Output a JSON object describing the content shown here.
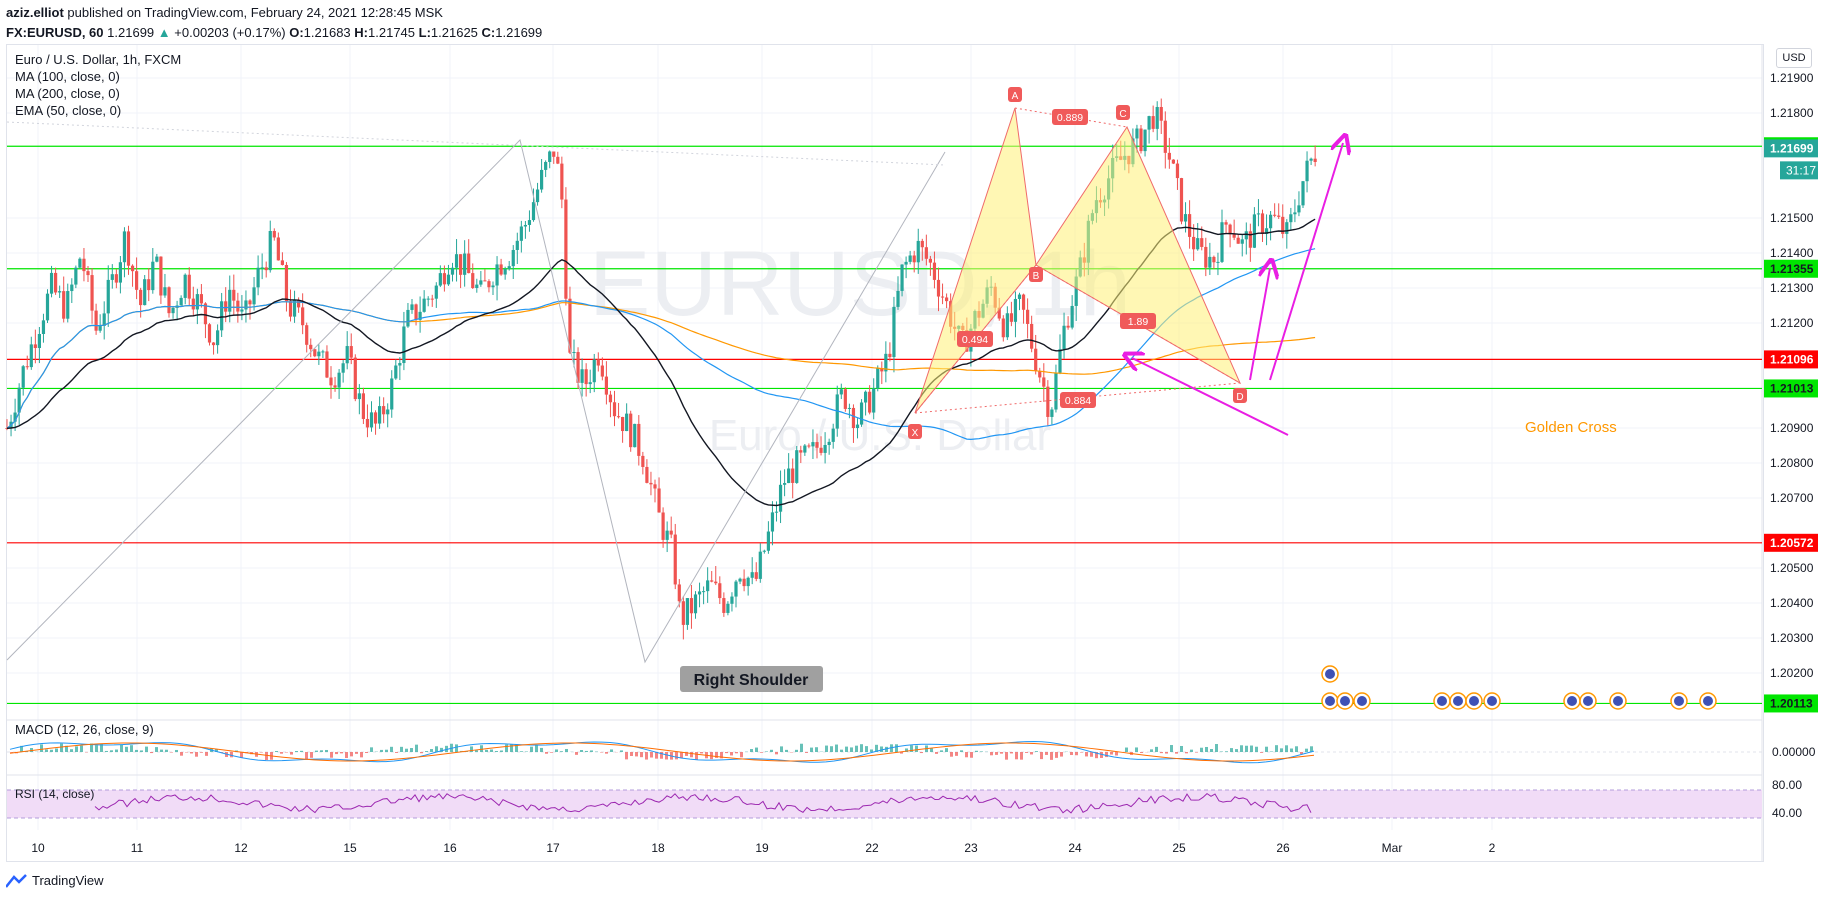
{
  "header": {
    "author": "aziz.elliot",
    "published": "published on TradingView.com, February 24, 2021 12:28:45 MSK",
    "symbol_line": "FX:EURUSD, 60",
    "last": "1.21699",
    "change": "+0.00203 (+0.17%)",
    "o_label": "O:",
    "o": "1.21683",
    "h_label": "H:",
    "h": "1.21745",
    "l_label": "L:",
    "l": "1.21625",
    "c_label": "C:",
    "c": "1.21699"
  },
  "legend": {
    "title": "Euro / U.S. Dollar, 1h, FXCM",
    "ma100": "MA (100, close, 0)",
    "ma200": "MA (200, close, 0)",
    "ema50": "EMA (50, close, 0)"
  },
  "watermark": {
    "symbol": "EURUSD, 1h",
    "name": "Euro / U.S. Dollar"
  },
  "currency_button": "USD",
  "countdown": "31:17",
  "annotations": {
    "right_shoulder": "Right Shoulder",
    "golden_cross": "Golden Cross",
    "pattern_points": [
      "X",
      "A",
      "B",
      "C",
      "D"
    ],
    "ratios": [
      "0.889",
      "0.494",
      "1.89",
      "0.884"
    ]
  },
  "macd_label": "MACD (12, 26, close, 9)",
  "rsi_label": "RSI (14, close)",
  "footer_brand": "TradingView",
  "colors": {
    "up": "#26a69a",
    "down": "#ef5350",
    "ema50": "#131722",
    "ma100": "#2196f3",
    "ma200": "#ff9800",
    "support_green": "#00e600",
    "resistance_red": "#ff0000",
    "harmonic_fill": "#fff176",
    "harmonic_edge": "#f06a6a",
    "arrow": "#e91ee3",
    "golden_text": "#ff9800",
    "rsi_band": "#f1dcf7",
    "rsi_line": "#9c27b0"
  },
  "chart_data": {
    "type": "candlestick",
    "title": "Euro / U.S. Dollar, 1h, FXCM",
    "x_ticks": [
      "10",
      "11",
      "12",
      "15",
      "16",
      "17",
      "18",
      "19",
      "22",
      "23",
      "24",
      "25",
      "26",
      "Mar",
      "2"
    ],
    "y_ticks": [
      1.219,
      1.218,
      1.215,
      1.214,
      1.213,
      1.212,
      1.209,
      1.208,
      1.207,
      1.205,
      1.204,
      1.203,
      1.202
    ],
    "y_tick_labels": [
      "1.21900",
      "1.21800",
      "1.21500",
      "1.21400",
      "1.21300",
      "1.21200",
      "1.20900",
      "1.20800",
      "1.20700",
      "1.20500",
      "1.20400",
      "1.20300",
      "1.20200"
    ],
    "ylim": [
      1.2012,
      1.2192
    ],
    "price_levels": [
      {
        "value": 1.21705,
        "label": "1.21705",
        "color": "#00e600"
      },
      {
        "value": 1.21699,
        "label": "1.21699",
        "color": "#26a69a"
      },
      {
        "value": 1.21355,
        "label": "1.21355",
        "color": "#00e600"
      },
      {
        "value": 1.21096,
        "label": "1.21096",
        "color": "#ff0000"
      },
      {
        "value": 1.21013,
        "label": "1.21013",
        "color": "#00e600"
      },
      {
        "value": 1.20572,
        "label": "1.20572",
        "color": "#ff0000"
      },
      {
        "value": 1.20113,
        "label": "1.20113",
        "color": "#00e600"
      }
    ],
    "close_path": [
      [
        0,
        1.209
      ],
      [
        0.4,
        1.2105
      ],
      [
        0.8,
        1.2118
      ],
      [
        1.2,
        1.213
      ],
      [
        1.6,
        1.2124
      ],
      [
        2.0,
        1.214
      ],
      [
        2.4,
        1.2118
      ],
      [
        2.8,
        1.213
      ],
      [
        3.2,
        1.2145
      ],
      [
        3.6,
        1.2125
      ],
      [
        4.0,
        1.2138
      ],
      [
        4.4,
        1.2122
      ],
      [
        4.8,
        1.2133
      ],
      [
        5.2,
        1.2125
      ],
      [
        5.6,
        1.2115
      ],
      [
        6.0,
        1.213
      ],
      [
        6.4,
        1.212
      ],
      [
        6.8,
        1.2134
      ],
      [
        7.2,
        1.2144
      ],
      [
        7.6,
        1.2125
      ],
      [
        8.0,
        1.212
      ],
      [
        8.4,
        1.211
      ],
      [
        8.8,
        1.2105
      ],
      [
        9.2,
        1.211
      ],
      [
        9.6,
        1.2095
      ],
      [
        10.0,
        1.209
      ],
      [
        10.4,
        1.2102
      ],
      [
        10.8,
        1.212
      ],
      [
        11.2,
        1.2125
      ],
      [
        11.6,
        1.213
      ],
      [
        12.0,
        1.214
      ],
      [
        12.4,
        1.2135
      ],
      [
        12.8,
        1.2128
      ],
      [
        13.2,
        1.2136
      ],
      [
        13.6,
        1.214
      ],
      [
        14.0,
        1.2148
      ],
      [
        14.4,
        1.216
      ],
      [
        14.8,
        1.217
      ],
      [
        15.0,
        1.2155
      ],
      [
        15.2,
        1.211
      ],
      [
        15.6,
        1.2102
      ],
      [
        16.0,
        1.2112
      ],
      [
        16.4,
        1.2096
      ],
      [
        16.8,
        1.209
      ],
      [
        17.2,
        1.2082
      ],
      [
        17.6,
        1.2065
      ],
      [
        18.0,
        1.2054
      ],
      [
        18.2,
        1.2035
      ],
      [
        18.6,
        1.204
      ],
      [
        19.0,
        1.2045
      ],
      [
        19.4,
        1.204
      ],
      [
        19.8,
        1.205
      ],
      [
        20.2,
        1.2045
      ],
      [
        20.6,
        1.206
      ],
      [
        21.0,
        1.2075
      ],
      [
        21.4,
        1.208
      ],
      [
        21.8,
        1.2083
      ],
      [
        22.2,
        1.209
      ],
      [
        22.6,
        1.21
      ],
      [
        23.0,
        1.2092
      ],
      [
        23.4,
        1.21
      ],
      [
        23.8,
        1.211
      ],
      [
        24.2,
        1.2135
      ],
      [
        24.6,
        1.2142
      ],
      [
        25.0,
        1.2136
      ],
      [
        25.4,
        1.2125
      ],
      [
        25.8,
        1.2113
      ],
      [
        26.2,
        1.2122
      ],
      [
        26.6,
        1.213
      ],
      [
        27.0,
        1.2118
      ],
      [
        27.4,
        1.2125
      ],
      [
        27.8,
        1.211
      ],
      [
        28.2,
        1.2095
      ],
      [
        28.6,
        1.212
      ],
      [
        29.0,
        1.2135
      ],
      [
        29.4,
        1.2155
      ],
      [
        29.8,
        1.2162
      ],
      [
        30.2,
        1.2168
      ],
      [
        30.6,
        1.2172
      ],
      [
        31.0,
        1.218
      ],
      [
        31.4,
        1.2168
      ],
      [
        31.8,
        1.215
      ],
      [
        32.2,
        1.214
      ],
      [
        32.6,
        1.2138
      ],
      [
        33.0,
        1.215
      ],
      [
        33.4,
        1.2142
      ],
      [
        33.8,
        1.2148
      ],
      [
        34.2,
        1.215
      ],
      [
        34.6,
        1.2145
      ],
      [
        35.0,
        1.216
      ],
      [
        35.4,
        1.217
      ]
    ]
  }
}
